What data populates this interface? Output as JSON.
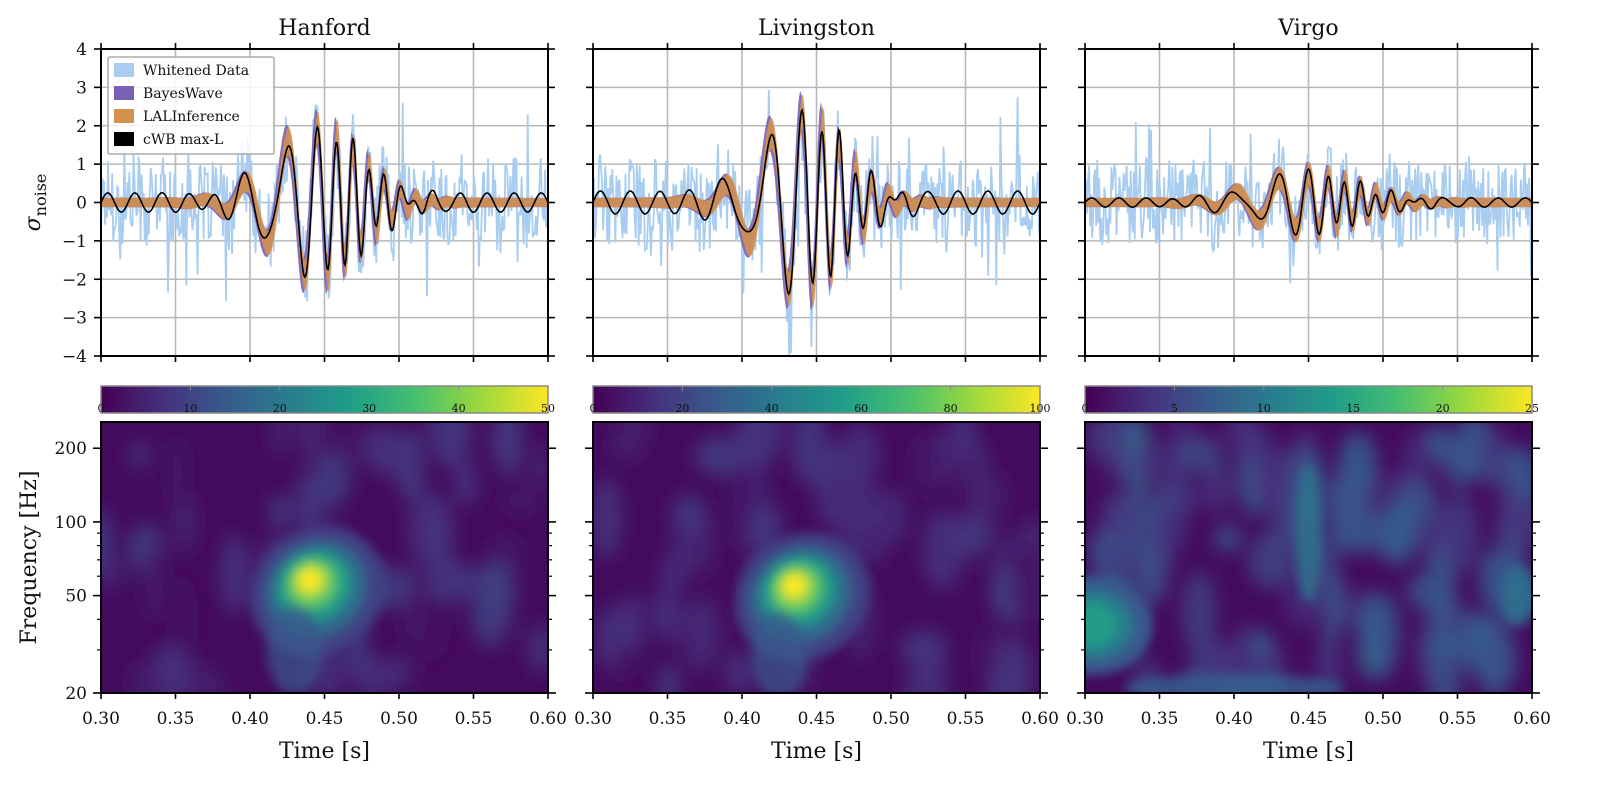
{
  "chart_data": [
    {
      "type": "line",
      "title": "Hanford",
      "xlabel": "",
      "ylabel": "σnoise",
      "xlim": [
        0.3,
        0.6
      ],
      "ylim": [
        -4,
        4
      ],
      "yticks": [
        "4",
        "3",
        "2",
        "1",
        "0",
        "−1",
        "−2",
        "−3",
        "−4"
      ],
      "grid": true,
      "legend": {
        "placement": "top-left",
        "entries": [
          "Whitened Data",
          "BayesWave",
          "LALInference",
          "cWB max-L"
        ]
      },
      "series": [
        {
          "name": "Whitened Data",
          "color": "#a8cdf0",
          "kind": "noisy",
          "noise_amplitude": 1.1
        },
        {
          "name": "BayesWave",
          "color": "#7b61b5",
          "kind": "band",
          "band_width": 0.35
        },
        {
          "name": "LALInference",
          "color": "#d2914f",
          "kind": "band",
          "band_width": 0.28
        },
        {
          "name": "cWB max-L",
          "color": "#000000",
          "kind": "line"
        }
      ],
      "waveform": {
        "peak_time": 0.445,
        "peak_amplitude": 2.0,
        "frequency_hz": 65,
        "chirp": 0.4,
        "envelope_width_s": 0.03,
        "ringing_amplitude": 0.25,
        "ringing_frequency_hz": 55
      }
    },
    {
      "type": "line",
      "title": "Livingston",
      "xlabel": "",
      "ylabel": "",
      "xlim": [
        0.3,
        0.6
      ],
      "ylim": [
        -4,
        4
      ],
      "grid": true,
      "series": [
        {
          "name": "Whitened Data",
          "color": "#a8cdf0",
          "kind": "noisy",
          "noise_amplitude": 1.1
        },
        {
          "name": "BayesWave",
          "color": "#7b61b5",
          "kind": "band",
          "band_width": 0.4
        },
        {
          "name": "LALInference",
          "color": "#d2914f",
          "kind": "band",
          "band_width": 0.32
        },
        {
          "name": "cWB max-L",
          "color": "#000000",
          "kind": "line"
        }
      ],
      "waveform": {
        "peak_time": 0.44,
        "peak_amplitude": 2.4,
        "frequency_hz": 62,
        "chirp": 0.4,
        "envelope_width_s": 0.028,
        "ringing_amplitude": 0.3,
        "ringing_frequency_hz": 50
      }
    },
    {
      "type": "line",
      "title": "Virgo",
      "xlabel": "",
      "ylabel": "",
      "xlim": [
        0.3,
        0.6
      ],
      "ylim": [
        -4,
        4
      ],
      "grid": true,
      "series": [
        {
          "name": "Whitened Data",
          "color": "#a8cdf0",
          "kind": "noisy",
          "noise_amplitude": 1.05
        },
        {
          "name": "BayesWave",
          "color": "#7b61b5",
          "kind": "band",
          "band_width": 0.2
        },
        {
          "name": "LALInference",
          "color": "#d2914f",
          "kind": "band",
          "band_width": 0.2
        },
        {
          "name": "cWB max-L",
          "color": "#000000",
          "kind": "line"
        }
      ],
      "waveform": {
        "peak_time": 0.45,
        "peak_amplitude": 0.75,
        "frequency_hz": 65,
        "chirp": 0.4,
        "envelope_width_s": 0.035,
        "ringing_amplitude": 0.12,
        "ringing_frequency_hz": 55
      }
    },
    {
      "type": "heatmap",
      "xlabel": "Time [s]",
      "ylabel": "Frequency [Hz]",
      "xlim": [
        0.3,
        0.6
      ],
      "ylim": [
        20,
        256
      ],
      "yscale": "log",
      "xticks": [
        "0.30",
        "0.35",
        "0.40",
        "0.45",
        "0.50",
        "0.55",
        "0.60"
      ],
      "yticks": [
        {
          "value": 200,
          "label": "200"
        },
        {
          "value": 100,
          "label": "100"
        },
        {
          "value": 50,
          "label": "50"
        },
        {
          "value": 20,
          "label": "20"
        }
      ],
      "colorbar": {
        "min": 0,
        "max": 50,
        "ticks": [
          "0",
          "10",
          "20",
          "30",
          "40",
          "50"
        ]
      },
      "blob": {
        "time": 0.44,
        "frequency_hz": 58,
        "peak_value": 50
      }
    },
    {
      "type": "heatmap",
      "xlabel": "Time [s]",
      "ylabel": "",
      "xlim": [
        0.3,
        0.6
      ],
      "ylim": [
        20,
        256
      ],
      "yscale": "log",
      "xticks": [
        "0.30",
        "0.35",
        "0.40",
        "0.45",
        "0.50",
        "0.55",
        "0.60"
      ],
      "colorbar": {
        "min": 0,
        "max": 100,
        "ticks": [
          "0",
          "20",
          "40",
          "60",
          "80",
          "100"
        ]
      },
      "blob": {
        "time": 0.435,
        "frequency_hz": 55,
        "peak_value": 100
      }
    },
    {
      "type": "heatmap",
      "xlabel": "Time [s]",
      "ylabel": "",
      "xlim": [
        0.3,
        0.6
      ],
      "ylim": [
        20,
        256
      ],
      "yscale": "log",
      "xticks": [
        "0.30",
        "0.35",
        "0.40",
        "0.45",
        "0.50",
        "0.55",
        "0.60"
      ],
      "colorbar": {
        "min": 0,
        "max": 25,
        "ticks": [
          "0",
          "5",
          "10",
          "15",
          "20",
          "25"
        ]
      },
      "blob": {
        "time": 0.305,
        "frequency_hz": 38,
        "peak_value": 14
      }
    }
  ],
  "colormap": [
    "#440154",
    "#46327e",
    "#365c8d",
    "#277f8e",
    "#1fa187",
    "#4ac16d",
    "#a0da39",
    "#fde725"
  ]
}
